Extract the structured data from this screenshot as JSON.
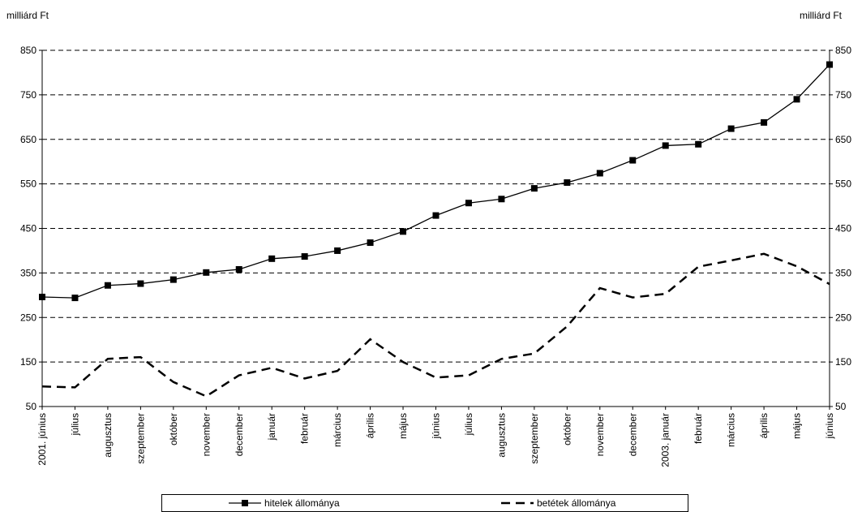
{
  "units": {
    "left": "milliárd Ft",
    "right": "milliárd Ft"
  },
  "legend": {
    "hitelek": "hitelek állománya",
    "betetek": "betétek állománya"
  },
  "chart_data": {
    "type": "line",
    "categories": [
      "2001. június",
      "július",
      "augusztus",
      "szeptember",
      "október",
      "november",
      "december",
      "január",
      "február",
      "március",
      "április",
      "május",
      "június",
      "július",
      "augusztus",
      "szeptember",
      "október",
      "november",
      "december",
      "2003. január",
      "február",
      "március",
      "április",
      "május",
      "június"
    ],
    "y_ticks": [
      50,
      150,
      250,
      350,
      450,
      550,
      650,
      750,
      850
    ],
    "ylim": [
      50,
      850
    ],
    "grid": "horizontal dashed",
    "legend_position": "bottom",
    "series": [
      {
        "name": "hitelek állománya",
        "style": "solid-square-markers",
        "color": "#000000",
        "values": [
          296,
          294,
          322,
          326,
          335,
          351,
          358,
          382,
          387,
          400,
          418,
          443,
          479,
          507,
          516,
          540,
          553,
          574,
          603,
          636,
          639,
          674,
          688,
          740,
          818
        ]
      },
      {
        "name": "betétek állománya",
        "style": "dashed",
        "color": "#000000",
        "values": [
          95,
          93,
          157,
          161,
          105,
          73,
          120,
          137,
          113,
          130,
          201,
          150,
          115,
          120,
          157,
          169,
          230,
          316,
          295,
          303,
          364,
          378,
          393,
          365,
          325
        ]
      }
    ]
  }
}
